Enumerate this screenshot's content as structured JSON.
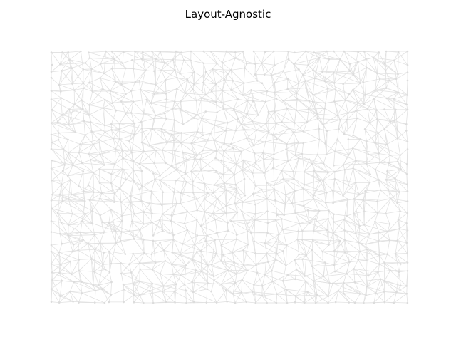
{
  "figure": {
    "title": "Layout-Agnostic"
  },
  "graph": {
    "seed": 7,
    "edge_color": "#e2e2e2",
    "node_color": "#dcdcdc"
  }
}
